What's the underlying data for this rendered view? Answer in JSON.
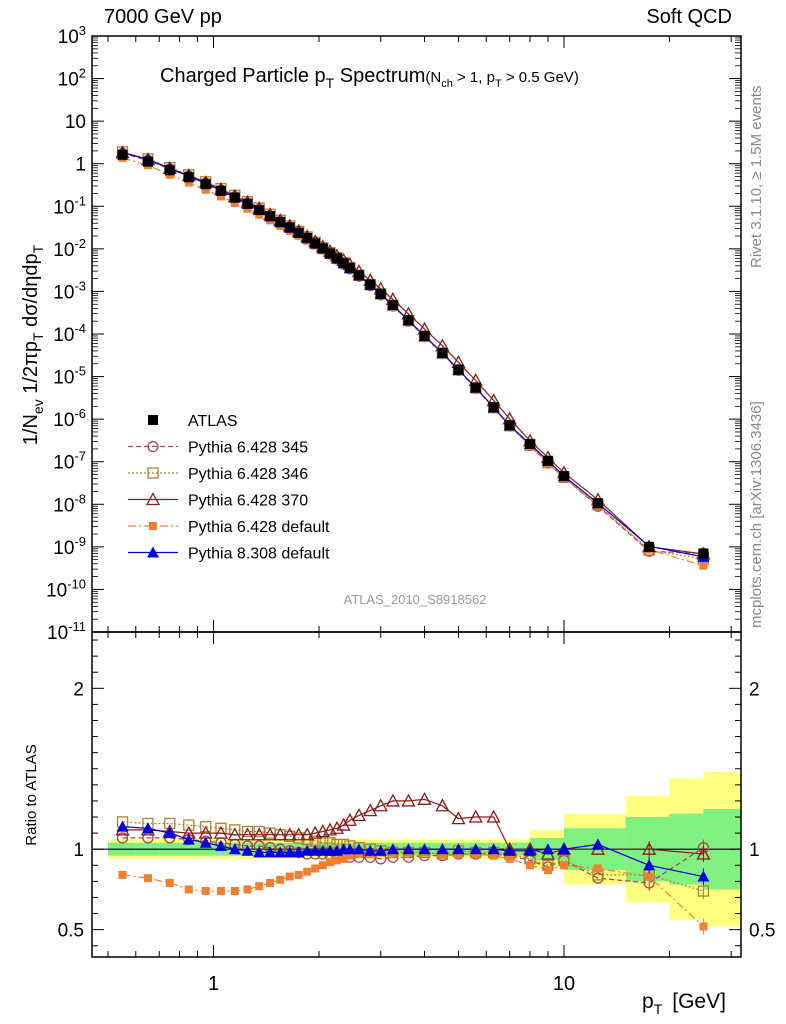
{
  "header": {
    "left": "7000 GeV pp",
    "right": "Soft QCD"
  },
  "side_labels": {
    "rivet": "Rivet 3.1.10, ≥ 1.5M events",
    "mcplots": "mcplots.cern.ch [arXiv:1306.3436]"
  },
  "plot_title": {
    "main": "Charged Particle p",
    "main_sub": "T",
    "main_rest": " Spectrum",
    "cut": "(N",
    "cut_sub1": "ch",
    "cut_mid": " > 1, p",
    "cut_sub2": "T",
    "cut_rest": " > 0.5 GeV)"
  },
  "analysis_tag": "ATLAS_2010_S8918562",
  "colors": {
    "data": "#000000",
    "p345": "#b04050",
    "p346": "#b08030",
    "p370": "#8b1a1a",
    "p6def": "#f08030",
    "p8": "#0000dd",
    "band_green": "#80f080",
    "band_yellow": "#ffff80"
  },
  "chart_data": [
    {
      "type": "scatter",
      "title": "Charged Particle pT Spectrum",
      "ylabel": "1/Nev 1/2πpT dσ/dηdpT",
      "xlabel": "pT [GeV]",
      "xscale": "log",
      "yscale": "log",
      "xlim": [
        0.45,
        32
      ],
      "ylim": [
        1e-11,
        1000
      ],
      "legend_placement": "lower-left",
      "y_ticks": [
        "10^-11",
        "10^-10",
        "10^-9",
        "10^-8",
        "10^-7",
        "10^-6",
        "10^-5",
        "10^-4",
        "10^-3",
        "10^-2",
        "10^-1",
        "1",
        "10",
        "10^2",
        "10^3"
      ],
      "series": [
        {
          "name": "ATLAS",
          "x": [
            0.55,
            0.65,
            0.75,
            0.85,
            0.95,
            1.05,
            1.15,
            1.25,
            1.35,
            1.45,
            1.55,
            1.65,
            1.75,
            1.85,
            1.95,
            2.05,
            2.15,
            2.25,
            2.35,
            2.45,
            2.6,
            2.8,
            3.0,
            3.25,
            3.6,
            4.0,
            4.5,
            5.0,
            5.6,
            6.3,
            7.0,
            8.0,
            9.0,
            10.0,
            12.5,
            17.5,
            25.0
          ],
          "y": [
            1.62,
            1.12,
            0.7,
            0.48,
            0.33,
            0.23,
            0.16,
            0.115,
            0.082,
            0.059,
            0.043,
            0.032,
            0.024,
            0.018,
            0.0135,
            0.0102,
            0.0078,
            0.006,
            0.0046,
            0.0036,
            0.0024,
            0.00145,
            0.00088,
            0.00048,
            0.00021,
            9e-05,
            3.6e-05,
            1.45e-05,
            5.5e-06,
            1.9e-06,
            7.2e-07,
            2.6e-07,
            1.05e-07,
            4.6e-08,
            1.06e-08,
            1e-09,
            7e-10
          ]
        },
        {
          "name": "Pythia 6.428 345",
          "x": [
            0.55,
            0.65,
            0.75,
            0.85,
            0.95,
            1.05,
            1.15,
            1.25,
            1.35,
            1.45,
            1.55,
            1.65,
            1.75,
            1.85,
            1.95,
            2.05,
            2.15,
            2.25,
            2.35,
            2.45,
            2.6,
            2.8,
            3.0,
            3.25,
            3.6,
            4.0,
            4.5,
            5.0,
            5.6,
            6.3,
            7.0,
            8.0,
            9.0,
            10.0,
            12.5,
            17.5,
            25.0
          ],
          "y": [
            1.74,
            1.2,
            0.75,
            0.51,
            0.348,
            0.24,
            0.166,
            0.118,
            0.084,
            0.06,
            0.0435,
            0.0322,
            0.024,
            0.0178,
            0.0133,
            0.01,
            0.0076,
            0.0058,
            0.0044,
            0.0034,
            0.00228,
            0.00137,
            0.00083,
            0.000455,
            0.0002,
            8.6e-05,
            3.45e-05,
            1.4e-05,
            5.3e-06,
            1.84e-06,
            6.9e-07,
            2.4e-07,
            9.3e-08,
            4.25e-08,
            9e-09,
            7.9e-10,
            7e-10
          ]
        },
        {
          "name": "Pythia 6.428 346",
          "x": [
            0.55,
            0.65,
            0.75,
            0.85,
            0.95,
            1.05,
            1.15,
            1.25,
            1.35,
            1.45,
            1.55,
            1.65,
            1.75,
            1.85,
            1.95,
            2.05,
            2.15,
            2.25,
            2.35,
            2.45,
            2.6,
            2.8,
            3.0,
            3.25,
            3.6,
            4.0,
            4.5,
            5.0,
            5.6,
            6.3,
            7.0,
            8.0,
            9.0,
            10.0,
            12.5,
            17.5,
            25.0
          ],
          "y": [
            1.9,
            1.3,
            0.81,
            0.55,
            0.375,
            0.26,
            0.18,
            0.128,
            0.091,
            0.065,
            0.047,
            0.0345,
            0.0257,
            0.019,
            0.0142,
            0.0106,
            0.0081,
            0.0062,
            0.0047,
            0.0036,
            0.0024,
            0.00145,
            0.00087,
            0.00047,
            0.000206,
            8.8e-05,
            3.5e-05,
            1.43e-05,
            5.4e-06,
            1.86e-06,
            7e-07,
            2.45e-07,
            9.5e-08,
            4.3e-08,
            9.8e-09,
            8.4e-10,
            5.2e-10
          ]
        },
        {
          "name": "Pythia 6.428 370",
          "x": [
            0.55,
            0.65,
            0.75,
            0.85,
            0.95,
            1.05,
            1.15,
            1.25,
            1.35,
            1.45,
            1.55,
            1.65,
            1.75,
            1.85,
            1.95,
            2.05,
            2.15,
            2.25,
            2.35,
            2.45,
            2.6,
            2.8,
            3.0,
            3.25,
            3.6,
            4.0,
            4.5,
            5.0,
            5.6,
            6.3,
            7.0,
            8.0,
            9.0,
            10.0,
            12.5,
            17.5,
            25.0
          ],
          "y": [
            1.82,
            1.25,
            0.78,
            0.53,
            0.363,
            0.252,
            0.174,
            0.125,
            0.089,
            0.064,
            0.0467,
            0.0348,
            0.0262,
            0.0196,
            0.0149,
            0.0113,
            0.0088,
            0.0069,
            0.0054,
            0.0043,
            0.00294,
            0.00183,
            0.00115,
            0.00065,
            0.000297,
            0.000131,
            5.3e-05,
            2.16e-05,
            8.1e-06,
            2.75e-06,
            1.02e-06,
            3.1e-07,
            1.25e-07,
            5.5e-08,
            1.28e-08,
            1.01e-09,
            6.8e-10
          ]
        },
        {
          "name": "Pythia 6.428 default",
          "x": [
            0.55,
            0.65,
            0.75,
            0.85,
            0.95,
            1.05,
            1.15,
            1.25,
            1.35,
            1.45,
            1.55,
            1.65,
            1.75,
            1.85,
            1.95,
            2.05,
            2.15,
            2.25,
            2.35,
            2.45,
            2.6,
            2.8,
            3.0,
            3.25,
            3.6,
            4.0,
            4.5,
            5.0,
            5.6,
            6.3,
            7.0,
            8.0,
            9.0,
            10.0,
            12.5,
            17.5,
            25.0
          ],
          "y": [
            1.36,
            0.92,
            0.55,
            0.36,
            0.245,
            0.17,
            0.119,
            0.087,
            0.0635,
            0.0467,
            0.0348,
            0.0264,
            0.0202,
            0.0155,
            0.0119,
            0.0092,
            0.0072,
            0.0056,
            0.0044,
            0.0035,
            0.00233,
            0.00141,
            0.00086,
            0.00047,
            0.000206,
            8.8e-05,
            3.5e-05,
            1.43e-05,
            5.4e-06,
            1.87e-06,
            7e-07,
            2.35e-07,
            9.2e-08,
            4.2e-08,
            9.5e-09,
            8.6e-10,
            3.6e-10
          ]
        },
        {
          "name": "Pythia 8.308 default",
          "x": [
            0.55,
            0.65,
            0.75,
            0.85,
            0.95,
            1.05,
            1.15,
            1.25,
            1.35,
            1.45,
            1.55,
            1.65,
            1.75,
            1.85,
            1.95,
            2.05,
            2.15,
            2.25,
            2.35,
            2.45,
            2.6,
            2.8,
            3.0,
            3.25,
            3.6,
            4.0,
            4.5,
            5.0,
            5.6,
            6.3,
            7.0,
            8.0,
            9.0,
            10.0,
            12.5,
            17.5,
            25.0
          ],
          "y": [
            1.84,
            1.26,
            0.77,
            0.51,
            0.345,
            0.235,
            0.16,
            0.114,
            0.081,
            0.058,
            0.042,
            0.0313,
            0.0235,
            0.0177,
            0.0133,
            0.0101,
            0.0077,
            0.0059,
            0.0046,
            0.0035,
            0.00236,
            0.00143,
            0.00087,
            0.00048,
            0.00021,
            9e-05,
            3.6e-05,
            1.44e-05,
            5.5e-06,
            1.88e-06,
            7.1e-07,
            2.6e-07,
            1.05e-07,
            4.6e-08,
            1.06e-08,
            1.03e-09,
            5.8e-10
          ]
        }
      ]
    },
    {
      "type": "scatter",
      "ylabel": "Ratio to ATLAS",
      "xlabel": "pT [GeV]",
      "xscale": "log",
      "xlim": [
        0.45,
        32
      ],
      "ylim": [
        0.33,
        2.35
      ],
      "x_ticks": [
        1,
        10
      ],
      "y_ticks": [
        0.5,
        1,
        2
      ],
      "bands": {
        "x_edges": [
          0.5,
          0.6,
          0.7,
          0.8,
          0.9,
          1.0,
          1.1,
          1.2,
          1.3,
          1.4,
          1.5,
          1.6,
          1.7,
          1.8,
          1.9,
          2.0,
          2.1,
          2.2,
          2.3,
          2.4,
          2.5,
          2.7,
          2.9,
          3.1,
          3.4,
          3.8,
          4.2,
          4.8,
          5.2,
          6.0,
          6.6,
          7.4,
          8.0,
          10.0,
          15.0,
          20.0,
          25.0,
          32.0
        ],
        "green_half": [
          0.04,
          0.04,
          0.04,
          0.04,
          0.04,
          0.04,
          0.04,
          0.04,
          0.04,
          0.04,
          0.04,
          0.04,
          0.04,
          0.04,
          0.04,
          0.04,
          0.04,
          0.04,
          0.04,
          0.04,
          0.04,
          0.04,
          0.04,
          0.04,
          0.04,
          0.04,
          0.04,
          0.04,
          0.04,
          0.04,
          0.04,
          0.04,
          0.07,
          0.13,
          0.2,
          0.22,
          0.25
        ],
        "yellow_half": [
          0.06,
          0.06,
          0.06,
          0.06,
          0.06,
          0.06,
          0.06,
          0.06,
          0.06,
          0.06,
          0.06,
          0.06,
          0.06,
          0.06,
          0.06,
          0.06,
          0.06,
          0.06,
          0.06,
          0.06,
          0.06,
          0.06,
          0.06,
          0.06,
          0.06,
          0.06,
          0.06,
          0.06,
          0.06,
          0.06,
          0.06,
          0.06,
          0.12,
          0.22,
          0.33,
          0.44,
          0.48
        ]
      },
      "series": [
        {
          "name": "Pythia 6.428 345",
          "y": [
            1.07,
            1.07,
            1.07,
            1.06,
            1.05,
            1.04,
            1.03,
            1.02,
            1.02,
            1.01,
            1.0,
            0.99,
            0.98,
            0.97,
            0.97,
            0.97,
            0.96,
            0.96,
            0.96,
            0.95,
            0.95,
            0.95,
            0.94,
            0.95,
            0.95,
            0.96,
            0.96,
            0.97,
            0.97,
            0.97,
            0.96,
            0.93,
            0.89,
            0.93,
            0.82,
            0.79,
            1.01
          ]
        },
        {
          "name": "Pythia 6.428 346",
          "y": [
            1.17,
            1.16,
            1.16,
            1.15,
            1.14,
            1.13,
            1.12,
            1.11,
            1.11,
            1.1,
            1.09,
            1.08,
            1.07,
            1.06,
            1.05,
            1.04,
            1.04,
            1.03,
            1.03,
            1.02,
            1.01,
            1.0,
            0.99,
            0.98,
            0.98,
            0.98,
            0.97,
            0.99,
            0.98,
            0.98,
            0.97,
            0.94,
            0.9,
            0.93,
            0.84,
            0.84,
            0.74
          ]
        },
        {
          "name": "Pythia 6.428 370",
          "y": [
            1.12,
            1.12,
            1.11,
            1.1,
            1.1,
            1.1,
            1.09,
            1.09,
            1.09,
            1.09,
            1.09,
            1.09,
            1.09,
            1.09,
            1.1,
            1.11,
            1.12,
            1.13,
            1.15,
            1.18,
            1.21,
            1.24,
            1.27,
            1.3,
            1.3,
            1.31,
            1.27,
            1.19,
            1.2,
            1.2,
            1.0,
            1.0,
            0.97,
            1.0,
            1.0,
            1.0,
            0.97
          ]
        },
        {
          "name": "Pythia 6.428 default",
          "y": [
            0.84,
            0.82,
            0.79,
            0.75,
            0.74,
            0.74,
            0.74,
            0.75,
            0.77,
            0.79,
            0.81,
            0.83,
            0.84,
            0.86,
            0.88,
            0.9,
            0.92,
            0.93,
            0.94,
            0.96,
            0.97,
            0.97,
            0.98,
            0.98,
            0.98,
            0.98,
            0.97,
            0.97,
            0.97,
            0.96,
            0.94,
            0.9,
            0.87,
            0.9,
            0.88,
            0.83,
            0.52
          ]
        },
        {
          "name": "Pythia 8.308 default",
          "y": [
            1.14,
            1.13,
            1.1,
            1.06,
            1.04,
            1.02,
            1.0,
            0.99,
            0.98,
            0.98,
            0.98,
            0.98,
            0.98,
            0.99,
            0.99,
            0.99,
            0.99,
            0.99,
            1.0,
            1.0,
            1.0,
            0.99,
            0.99,
            1.0,
            1.0,
            1.0,
            1.0,
            1.0,
            1.0,
            1.0,
            0.99,
            0.99,
            1.0,
            1.0,
            1.03,
            0.9,
            0.83
          ]
        }
      ]
    }
  ],
  "legend": [
    {
      "label": "ATLAS"
    },
    {
      "label": "Pythia 6.428 345"
    },
    {
      "label": "Pythia 6.428 346"
    },
    {
      "label": "Pythia 6.428 370"
    },
    {
      "label": "Pythia 6.428 default"
    },
    {
      "label": "Pythia 8.308 default"
    }
  ],
  "axis_labels": {
    "ylabel_main": "1/N",
    "ylabel_ratio": "Ratio to ATLAS",
    "xlabel": "p",
    "xlabel_sub": "T",
    "xlabel_unit": "[GeV]"
  }
}
